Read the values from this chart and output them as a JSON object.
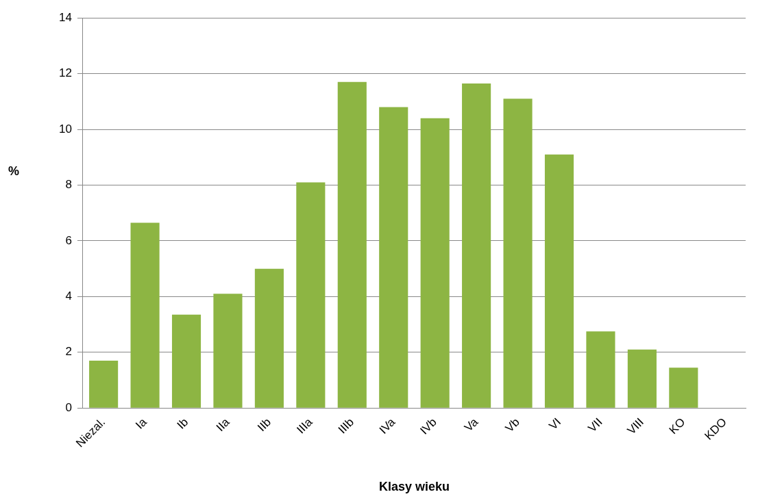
{
  "chart_data": {
    "type": "bar",
    "xlabel": "Klasy wieku",
    "ylabel": "%",
    "categories": [
      "Niezal.",
      "Ia",
      "Ib",
      "IIa",
      "IIb",
      "IIIa",
      "IIIb",
      "IVa",
      "IVb",
      "Va",
      "Vb",
      "VI",
      "VII",
      "VIII",
      "KO",
      "KDO"
    ],
    "values": [
      1.7,
      6.65,
      3.35,
      4.1,
      5.0,
      8.1,
      11.7,
      10.8,
      10.4,
      11.65,
      11.1,
      9.1,
      2.75,
      2.1,
      1.45,
      0
    ],
    "color": "#8db543",
    "ylim": [
      0,
      14
    ],
    "yticks": [
      0,
      2,
      4,
      6,
      8,
      10,
      12,
      14
    ],
    "grid": "y",
    "legend": false
  }
}
